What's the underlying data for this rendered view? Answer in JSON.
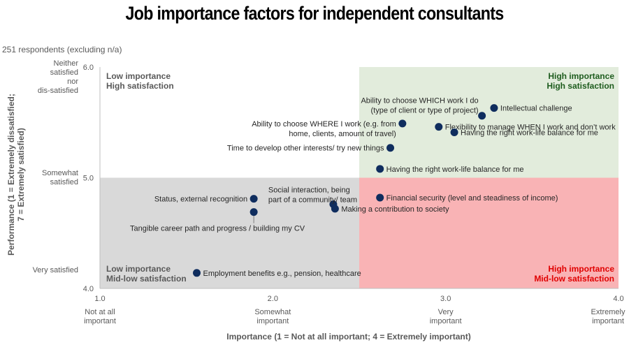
{
  "title": "Job importance factors for independent consultants",
  "subtitle": "251 respondents (excluding n/a)",
  "chart_data": {
    "type": "scatter",
    "title": "Job importance factors for independent consultants",
    "xlabel": "Importance (1 = Not at all important; 4 = Extremely important)",
    "ylabel": "Performance (1 = Extremely dissatisfied; 7 = Extremely satisfied)",
    "xlim": [
      1.0,
      4.0
    ],
    "ylim": [
      4.0,
      6.0
    ],
    "x_ticks": [
      "1.0",
      "2.0",
      "3.0",
      "4.0"
    ],
    "y_ticks": [
      "4.0",
      "5.0",
      "6.0"
    ],
    "x_tick_descriptions": [
      "Not at all important",
      "Somewhat important",
      "Very important",
      "Extremely important"
    ],
    "y_tick_descriptions": [
      "Neither satisfied nor dis-satisfied",
      "Somewhat satisfied",
      "Very satisfied"
    ],
    "quadrant_split": {
      "x": 2.5,
      "y": 5.0
    },
    "quadrants": [
      {
        "label": "Low importance High satisfaction",
        "color": "#ffffff",
        "text_color": "#595959"
      },
      {
        "label": "High importance High satisfaction",
        "color": "#e2ecdc",
        "text_color": "#1e5c1e"
      },
      {
        "label": "Low importance Mid-low satisfaction",
        "color": "#d9d9d9",
        "text_color": "#595959"
      },
      {
        "label": "High importance Mid-low satisfaction",
        "color": "#f9b3b5",
        "text_color": "#e00000"
      }
    ],
    "marker_color": "#0f2d5e",
    "points": [
      {
        "label": "Intellectual challenge",
        "x": 3.28,
        "y": 5.63
      },
      {
        "label": "Ability to choose WHICH work I do (type of client or type of project)",
        "x": 3.21,
        "y": 5.56
      },
      {
        "label": "Flexibility to manage WHEN I work and don’t work",
        "x": 2.96,
        "y": 5.46
      },
      {
        "label": "Having the right work-life balance for me",
        "x": 3.05,
        "y": 5.41
      },
      {
        "label": "Ability to choose WHERE I work (e.g. from home, clients, amount of travel)",
        "x": 2.75,
        "y": 5.49
      },
      {
        "label": "Time to develop other interests/ try new things",
        "x": 2.68,
        "y": 5.27
      },
      {
        "label": "Having the right work-life balance for me",
        "x": 2.62,
        "y": 5.08
      },
      {
        "label": "Financial security (level and steadiness of income)",
        "x": 2.62,
        "y": 4.82
      },
      {
        "label": "Status, external recognition",
        "x": 1.89,
        "y": 4.81
      },
      {
        "label": "Tangible career path and progress / building my CV",
        "x": 1.89,
        "y": 4.69
      },
      {
        "label": "Social interaction, being part of a community/ team",
        "x": 2.35,
        "y": 4.76
      },
      {
        "label": "Making a contribution to society",
        "x": 2.36,
        "y": 4.72
      },
      {
        "label": "Employment benefits e.g., pension, healthcare",
        "x": 1.56,
        "y": 4.14
      }
    ]
  }
}
